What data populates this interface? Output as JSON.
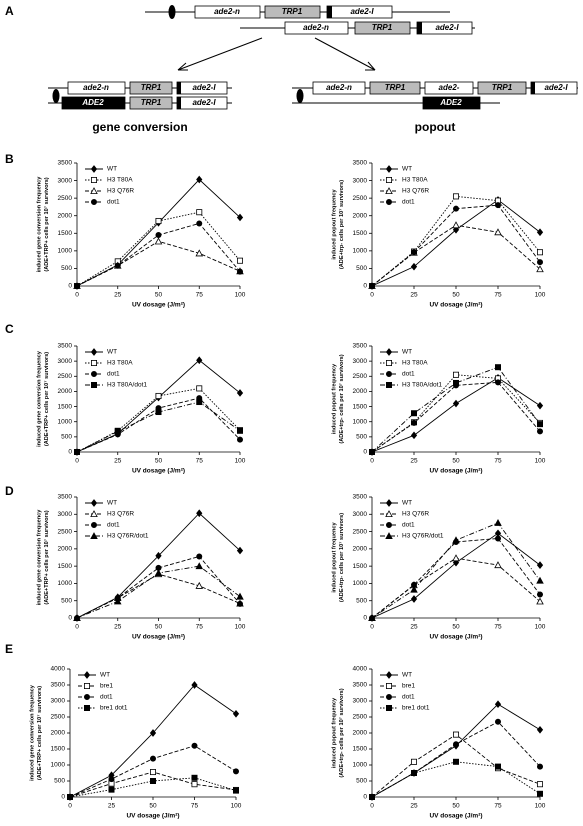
{
  "panels": [
    "A",
    "B",
    "C",
    "D",
    "E"
  ],
  "diagram": {
    "labels": {
      "ade2_n": "ade2-n",
      "trp1": "TRP1",
      "ade2_i": "ade2-I",
      "ade2": "ADE2",
      "ade2_trunc": "ade2-"
    },
    "captions": [
      "gene conversion",
      "popout"
    ]
  },
  "chart_data": [
    {
      "type": "line",
      "x": [
        0,
        25,
        50,
        75,
        100
      ],
      "xlim": [
        0,
        100
      ],
      "xticks": [
        0,
        25,
        50,
        75,
        100
      ],
      "ylim": [
        0,
        3500
      ],
      "yticks": [
        0,
        500,
        1000,
        1500,
        2000,
        2500,
        3000,
        3500
      ],
      "xlabel": "UV dosage (J/m²)",
      "ylabel": [
        "induced gene conversion frequency",
        "(ADE+TRP+ cells per 10⁷ survivors)"
      ],
      "series": [
        {
          "name": "WT",
          "color": "#000",
          "marker": "diamond",
          "dash": "solid",
          "values": [
            0,
            600,
            1800,
            3030,
            1950
          ]
        },
        {
          "name": "H3 T80A",
          "color": "#000",
          "marker": "square-open",
          "dash": "dotted",
          "values": [
            0,
            700,
            1850,
            2100,
            720
          ]
        },
        {
          "name": "H3 Q76R",
          "color": "#000",
          "marker": "triangle-open",
          "dash": "dashed",
          "values": [
            0,
            580,
            1270,
            930,
            420
          ]
        },
        {
          "name": "dot1",
          "color": "#000",
          "marker": "circle",
          "dash": "dashed",
          "values": [
            0,
            580,
            1450,
            1780,
            410
          ]
        }
      ]
    },
    {
      "type": "line",
      "x": [
        0,
        25,
        50,
        75,
        100
      ],
      "xlim": [
        0,
        100
      ],
      "xticks": [
        0,
        25,
        50,
        75,
        100
      ],
      "ylim": [
        0,
        3500
      ],
      "yticks": [
        0,
        500,
        1000,
        1500,
        2000,
        2500,
        3000,
        3500
      ],
      "xlabel": "UV dosage (J/m²)",
      "ylabel": [
        "induced popout frequency",
        "(ADE+trp- cells per 10⁷ survivors)"
      ],
      "series": [
        {
          "name": "WT",
          "color": "#000",
          "marker": "diamond",
          "dash": "solid",
          "values": [
            0,
            550,
            1600,
            2450,
            1530
          ]
        },
        {
          "name": "H3 T80A",
          "color": "#000",
          "marker": "square-open",
          "dash": "dotted",
          "values": [
            0,
            980,
            2550,
            2430,
            960
          ]
        },
        {
          "name": "H3 Q76R",
          "color": "#000",
          "marker": "triangle-open",
          "dash": "dashed",
          "values": [
            0,
            950,
            1730,
            1530,
            480
          ]
        },
        {
          "name": "dot1",
          "color": "#000",
          "marker": "circle",
          "dash": "dashed",
          "values": [
            0,
            960,
            2200,
            2300,
            680
          ]
        }
      ]
    },
    {
      "type": "line",
      "x": [
        0,
        25,
        50,
        75,
        100
      ],
      "xlim": [
        0,
        100
      ],
      "xticks": [
        0,
        25,
        50,
        75,
        100
      ],
      "ylim": [
        0,
        3500
      ],
      "yticks": [
        0,
        500,
        1000,
        1500,
        2000,
        2500,
        3000,
        3500
      ],
      "xlabel": "UV dosage (J/m²)",
      "ylabel": [
        "induced gene conversion frequency",
        "(ADE+TRP+ cells per 10⁷ survivors)"
      ],
      "series": [
        {
          "name": "WT",
          "color": "#000",
          "marker": "diamond",
          "dash": "solid",
          "values": [
            0,
            600,
            1800,
            3030,
            1950
          ]
        },
        {
          "name": "H3 T80A",
          "color": "#000",
          "marker": "square-open",
          "dash": "dotted",
          "values": [
            0,
            700,
            1850,
            2100,
            720
          ]
        },
        {
          "name": "dot1",
          "color": "#000",
          "marker": "circle",
          "dash": "dashed",
          "values": [
            0,
            580,
            1450,
            1780,
            410
          ]
        },
        {
          "name": "H3 T80A/dot1",
          "color": "#000",
          "marker": "square",
          "dash": "dashdot",
          "values": [
            0,
            680,
            1320,
            1650,
            700
          ]
        }
      ]
    },
    {
      "type": "line",
      "x": [
        0,
        25,
        50,
        75,
        100
      ],
      "xlim": [
        0,
        100
      ],
      "xticks": [
        0,
        25,
        50,
        75,
        100
      ],
      "ylim": [
        0,
        3500
      ],
      "yticks": [
        0,
        500,
        1000,
        1500,
        2000,
        2500,
        3000,
        3500
      ],
      "xlabel": "UV dosage (J/m²)",
      "ylabel": [
        "induced popout frequency",
        "(ADE+trp- cells per 10⁷ survivors)"
      ],
      "series": [
        {
          "name": "WT",
          "color": "#000",
          "marker": "diamond",
          "dash": "solid",
          "values": [
            0,
            550,
            1600,
            2450,
            1530
          ]
        },
        {
          "name": "H3 T80A",
          "color": "#000",
          "marker": "square-open",
          "dash": "dotted",
          "values": [
            0,
            980,
            2550,
            2430,
            960
          ]
        },
        {
          "name": "dot1",
          "color": "#000",
          "marker": "circle",
          "dash": "dashed",
          "values": [
            0,
            960,
            2200,
            2300,
            680
          ]
        },
        {
          "name": "H3 T80A/dot1",
          "color": "#000",
          "marker": "square",
          "dash": "dashdot",
          "values": [
            0,
            1280,
            2280,
            2800,
            920
          ]
        }
      ]
    },
    {
      "type": "line",
      "x": [
        0,
        25,
        50,
        75,
        100
      ],
      "xlim": [
        0,
        100
      ],
      "xticks": [
        0,
        25,
        50,
        75,
        100
      ],
      "ylim": [
        0,
        3500
      ],
      "yticks": [
        0,
        500,
        1000,
        1500,
        2000,
        2500,
        3000,
        3500
      ],
      "xlabel": "UV dosage (J/m²)",
      "ylabel": [
        "induced gene conversion frequency",
        "(ADE+TRP+ cells per 10⁷ survivors)"
      ],
      "series": [
        {
          "name": "WT",
          "color": "#000",
          "marker": "diamond",
          "dash": "solid",
          "values": [
            0,
            600,
            1800,
            3030,
            1950
          ]
        },
        {
          "name": "H3 Q76R",
          "color": "#000",
          "marker": "triangle-open",
          "dash": "dashed",
          "values": [
            0,
            580,
            1270,
            930,
            420
          ]
        },
        {
          "name": "dot1",
          "color": "#000",
          "marker": "circle",
          "dash": "dashed",
          "values": [
            0,
            580,
            1450,
            1780,
            410
          ]
        },
        {
          "name": "H3 Q76R/dot1",
          "color": "#000",
          "marker": "triangle",
          "dash": "dashdot",
          "values": [
            0,
            480,
            1300,
            1500,
            620
          ]
        }
      ]
    },
    {
      "type": "line",
      "x": [
        0,
        25,
        50,
        75,
        100
      ],
      "xlim": [
        0,
        100
      ],
      "xticks": [
        0,
        25,
        50,
        75,
        100
      ],
      "ylim": [
        0,
        3500
      ],
      "yticks": [
        0,
        500,
        1000,
        1500,
        2000,
        2500,
        3000,
        3500
      ],
      "xlabel": "UV dosage (J/m²)",
      "ylabel": [
        "induced popout frequency",
        "(ADE+trp- cells per 10⁷ survivors)"
      ],
      "series": [
        {
          "name": "WT",
          "color": "#000",
          "marker": "diamond",
          "dash": "solid",
          "values": [
            0,
            550,
            1600,
            2450,
            1530
          ]
        },
        {
          "name": "H3 Q76R",
          "color": "#000",
          "marker": "triangle-open",
          "dash": "dashed",
          "values": [
            0,
            950,
            1730,
            1530,
            480
          ]
        },
        {
          "name": "dot1",
          "color": "#000",
          "marker": "circle",
          "dash": "dashed",
          "values": [
            0,
            960,
            2200,
            2300,
            680
          ]
        },
        {
          "name": "H3 Q76R/dot1",
          "color": "#000",
          "marker": "triangle",
          "dash": "dashdot",
          "values": [
            0,
            820,
            2250,
            2750,
            1080
          ]
        }
      ]
    },
    {
      "type": "line",
      "x": [
        0,
        25,
        50,
        75,
        100
      ],
      "xlim": [
        0,
        100
      ],
      "xticks": [
        0,
        25,
        50,
        75,
        100
      ],
      "ylim": [
        0,
        4000
      ],
      "yticks": [
        0,
        500,
        1000,
        1500,
        2000,
        2500,
        3000,
        3500,
        4000
      ],
      "xlabel": "UV dosage (J/m²)",
      "ylabel": [
        "induced gene conversion frequency",
        "(ADE+TRP+ cells per 10⁷ survivors)"
      ],
      "series": [
        {
          "name": "WT",
          "color": "#000",
          "marker": "diamond",
          "dash": "solid",
          "values": [
            0,
            680,
            2000,
            3500,
            2600
          ]
        },
        {
          "name": "bre1",
          "color": "#000",
          "marker": "square-open",
          "dash": "dashed",
          "values": [
            0,
            420,
            780,
            400,
            220
          ]
        },
        {
          "name": "dot1",
          "color": "#000",
          "marker": "circle",
          "dash": "dashed",
          "values": [
            0,
            560,
            1200,
            1600,
            800
          ]
        },
        {
          "name": "bre1 dot1",
          "color": "#000",
          "marker": "square",
          "dash": "dotted",
          "values": [
            0,
            230,
            500,
            600,
            200
          ]
        }
      ]
    },
    {
      "type": "line",
      "x": [
        0,
        25,
        50,
        75,
        100
      ],
      "xlim": [
        0,
        100
      ],
      "xticks": [
        0,
        25,
        50,
        75,
        100
      ],
      "ylim": [
        0,
        4000
      ],
      "yticks": [
        0,
        500,
        1000,
        1500,
        2000,
        2500,
        3000,
        3500,
        4000
      ],
      "xlabel": "UV dosage (J/m²)",
      "ylabel": [
        "induced popout frequency",
        "(ADE+trp- cells per 10⁷ survivors)"
      ],
      "series": [
        {
          "name": "WT",
          "color": "#000",
          "marker": "diamond",
          "dash": "solid",
          "values": [
            0,
            750,
            1600,
            2900,
            2100
          ]
        },
        {
          "name": "bre1",
          "color": "#000",
          "marker": "square-open",
          "dash": "dashed",
          "values": [
            0,
            1100,
            1950,
            900,
            400
          ]
        },
        {
          "name": "dot1",
          "color": "#000",
          "marker": "circle",
          "dash": "dashed",
          "values": [
            0,
            750,
            1650,
            2350,
            950
          ]
        },
        {
          "name": "bre1 dot1",
          "color": "#000",
          "marker": "square",
          "dash": "dotted",
          "values": [
            0,
            750,
            1100,
            950,
            100
          ]
        }
      ]
    }
  ]
}
